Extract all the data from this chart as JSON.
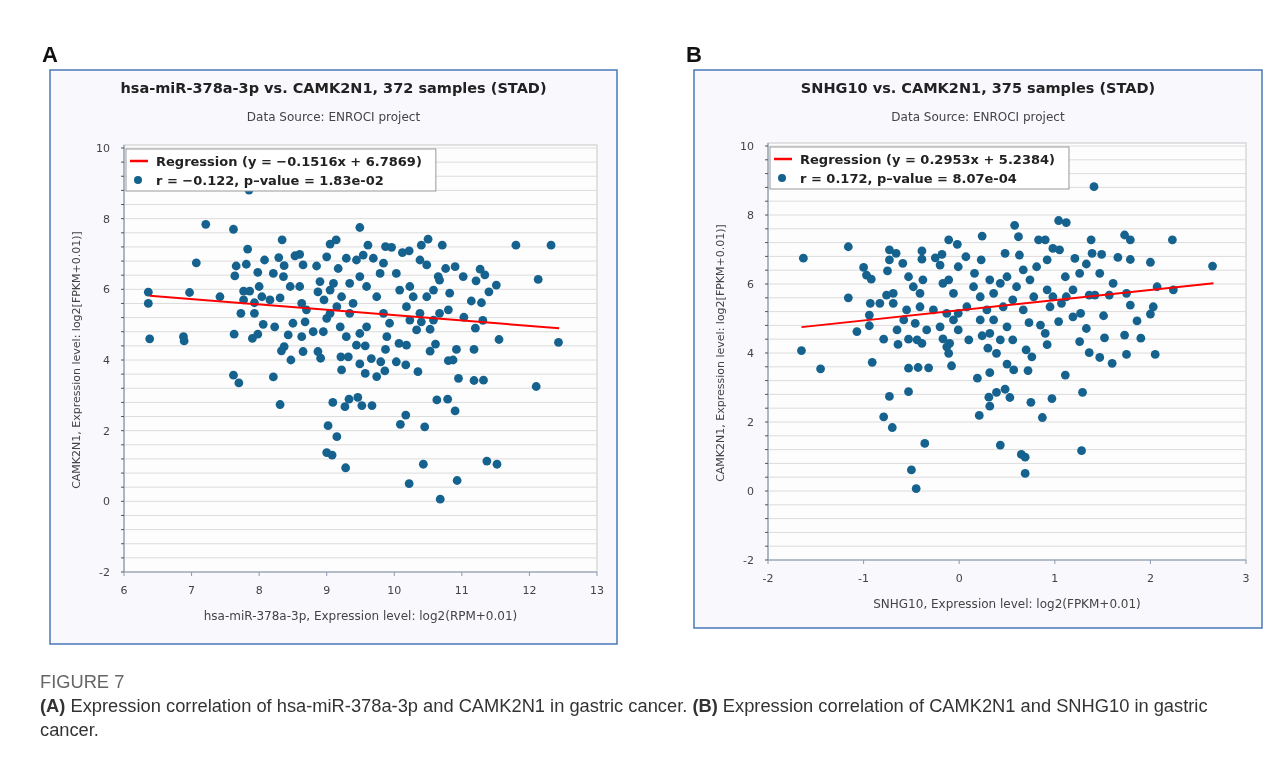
{
  "chart_data": [
    {
      "type": "scatter",
      "title": "hsa-miR-378a-3p vs. CAMK2N1, 372 samples (STAD)",
      "subtitle": "Data Source: ENROCI project",
      "xlabel": "hsa-miR-378a-3p, Expression level: log2(RPM+0.01)",
      "ylabel": "CAMK2N1, Expression level: log2[FPKM+0.01)]",
      "annotations": [
        "A"
      ],
      "xlim": [
        6,
        13
      ],
      "xticks": [
        6,
        7,
        8,
        9,
        10,
        11,
        12,
        13
      ],
      "ylim": [
        -2,
        10
      ],
      "yticks": [
        -2,
        {
          "value": -1.6,
          "label": null
        },
        {
          "value": -1.2,
          "label": null
        },
        {
          "value": -0.8,
          "label": null
        },
        {
          "value": -0.4,
          "label": null
        },
        0,
        {
          "value": 0.4,
          "label": null
        },
        {
          "value": 0.8,
          "label": null
        },
        {
          "value": 1.2,
          "label": null
        },
        {
          "value": 1.6,
          "label": null
        },
        2,
        {
          "value": 2.4,
          "label": null
        },
        {
          "value": 2.8,
          "label": null
        },
        {
          "value": 3.2,
          "label": null
        },
        {
          "value": 3.6,
          "label": null
        },
        4,
        {
          "value": 4.4,
          "label": null
        },
        {
          "value": 4.8,
          "label": null
        },
        {
          "value": 5.2,
          "label": null
        },
        {
          "value": 5.6,
          "label": null
        },
        6,
        {
          "value": 6.4,
          "label": null
        },
        {
          "value": 6.8,
          "label": null
        },
        {
          "value": 7.2,
          "label": null
        },
        {
          "value": 7.6,
          "label": null
        },
        8,
        {
          "value": 8.4,
          "label": null
        },
        {
          "value": 8.8,
          "label": null
        },
        {
          "value": 9.2,
          "label": null
        },
        {
          "value": 9.6,
          "label": null
        },
        10
      ],
      "grid": "y",
      "legend": "top left",
      "series": [
        {
          "type": "line",
          "name": "Regression (y = −0.1516x + 6.7869)",
          "color": "#ff0000",
          "x": [
            6.38,
            12.44
          ],
          "values": [
            5.82,
            4.9
          ]
        },
        {
          "marker": "circle",
          "name": "r = −0.122, p–value = 1.83e-02",
          "color": "#15628f",
          "x": [
            7.85,
            7.21,
            7.62,
            9.49,
            7.07,
            7.83,
            8.34,
            6.36,
            6.36,
            6.38,
            6.97,
            6.88,
            6.89,
            7.42,
            7.66,
            7.64,
            7.81,
            7.63,
            7.62,
            7.7,
            7.9,
            7.98,
            8.21,
            8.31,
            8.08,
            8.29,
            8.53,
            8.6,
            8.37,
            8.85,
            9.05,
            9.14,
            9.0,
            9.61,
            9.87,
            9.96,
            10.12,
            10.22,
            10.4,
            10.5,
            10.71,
            11.8,
            12.32,
            12.13,
            11.51,
            11.4,
            11.55,
            12.43,
            12.1,
            11.37,
            11.52,
            10.93,
            10.68,
            10.22,
            10.43,
            10.09,
            10.17,
            10.45,
            10.63,
            10.79,
            10.9,
            10.95,
            11.18,
            11.32,
            11.18,
            11.2,
            11.31,
            11.29,
            11.14,
            11.27,
            11.34,
            11.21,
            11.02,
            10.9,
            10.76,
            10.65,
            10.8,
            11.03,
            10.92,
            10.87,
            10.8,
            10.61,
            10.53,
            10.53,
            10.35,
            10.17,
            10.03,
            10.18,
            10.07,
            9.87,
            9.86,
            9.74,
            9.57,
            9.49,
            9.66,
            9.8,
            9.44,
            9.57,
            9.21,
            9.32,
            9.22,
            9.09,
            9.33,
            9.46,
            9.27,
            9.52,
            9.67,
            9.02,
            9.15,
            9.0,
            9.08,
            9.28,
            8.91,
            8.87,
            8.65,
            8.47,
            8.33,
            8.37,
            8.23,
            8.06,
            7.93,
            7.73,
            7.77,
            7.93,
            7.77,
            7.86,
            8.0,
            7.98,
            8.04,
            8.16,
            8.21,
            8.36,
            8.31,
            8.46,
            8.43,
            8.5,
            8.68,
            8.63,
            8.8,
            8.95,
            9.0,
            8.7,
            8.63,
            8.6,
            8.87,
            8.9,
            8.65,
            9.17,
            9.29,
            9.44,
            9.54,
            9.69,
            9.84,
            9.1,
            9.22,
            9.15,
            9.2,
            9.34,
            9.39,
            9.49,
            9.59,
            9.49,
            9.59,
            9.74,
            9.84,
            9.93,
            9.89,
            10.03,
            10.08,
            10.18,
            10.28,
            10.23,
            10.38,
            10.4,
            10.33,
            10.48,
            10.58,
            10.58,
            10.67,
            10.23,
            10.38,
            10.48,
            10.67,
            10.82,
            9.79,
            9.34,
            8.96,
            9.05,
            9.29,
            9.05
          ],
          "values": [
            8.81,
            7.84,
            7.7,
            7.75,
            6.75,
            7.14,
            7.4,
            5.92,
            5.6,
            4.6,
            5.91,
            4.66,
            4.54,
            5.79,
            6.66,
            6.38,
            6.71,
            4.73,
            3.57,
            3.35,
            4.61,
            4.73,
            3.52,
            2.74,
            6.83,
            6.9,
            6.95,
            6.99,
            6.67,
            6.66,
            7.28,
            7.4,
            6.92,
            7.25,
            7.21,
            7.19,
            7.04,
            7.09,
            7.25,
            7.42,
            7.25,
            7.25,
            7.25,
            6.28,
            6.12,
            5.93,
            4.58,
            4.5,
            3.25,
            1.14,
            1.05,
            0.59,
            0.06,
            0.5,
            1.05,
            2.18,
            2.44,
            2.11,
            2.87,
            2.89,
            2.56,
            3.48,
            3.42,
            3.43,
            4.3,
            4.9,
            5.12,
            5.62,
            5.67,
            6.57,
            6.41,
            6.24,
            6.36,
            6.64,
            6.59,
            6.36,
            5.42,
            5.21,
            4.3,
            4.0,
            3.98,
            4.45,
            4.25,
            4.87,
            3.67,
            3.86,
            3.95,
            4.42,
            4.47,
            4.3,
            3.69,
            3.53,
            3.62,
            3.89,
            4.04,
            3.95,
            4.42,
            4.4,
            4.09,
            4.09,
            3.72,
            2.8,
            2.89,
            2.94,
            2.68,
            2.71,
            2.71,
            2.14,
            1.83,
            1.38,
            1.31,
            0.95,
            4.05,
            4.24,
            4.24,
            4.0,
            4.26,
            4.38,
            4.94,
            5.01,
            5.32,
            5.32,
            5.7,
            5.62,
            5.95,
            5.95,
            6.08,
            6.48,
            5.79,
            5.7,
            6.45,
            6.36,
            5.76,
            6.08,
            4.71,
            5.04,
            5.08,
            4.66,
            4.8,
            4.8,
            5.18,
            5.42,
            5.6,
            6.08,
            5.93,
            6.22,
            6.69,
            6.59,
            6.88,
            6.83,
            6.97,
            6.88,
            6.74,
            6.17,
            5.79,
            5.51,
            4.94,
            5.32,
            5.6,
            6.36,
            6.08,
            4.75,
            4.94,
            5.79,
            5.32,
            5.04,
            4.66,
            6.45,
            5.98,
            5.51,
            5.79,
            5.13,
            5.32,
            5.08,
            4.85,
            5.79,
            5.98,
            5.13,
            5.32,
            6.08,
            6.83,
            6.69,
            6.26,
            5.89,
            6.45,
            6.17,
            5.7,
            5.32,
            4.66,
            5.98
          ]
        }
      ]
    },
    {
      "type": "scatter",
      "title": "SNHG10 vs. CAMK2N1, 375 samples (STAD)",
      "subtitle": "Data Source: ENROCI project",
      "xlabel": "SNHG10, Expression level: log2(FPKM+0.01)",
      "ylabel": "CAMK2N1, Expression level: log2[FPKM+0.01)]",
      "annotations": [
        "B",
        "FIGURE 7",
        "(A) Expression correlation of hsa-miR-378a-3p and CAMK2N1 in gastric cancer. (B) Expression correlation of CAMK2N1 and SNHG10 in gastric cancer."
      ],
      "xlim": [
        -2,
        3
      ],
      "xticks": [
        -2,
        -1,
        0,
        1,
        2,
        3
      ],
      "ylim": [
        -2,
        10
      ],
      "yticks": [
        -2,
        {
          "value": -1.6,
          "label": null
        },
        {
          "value": -1.2,
          "label": null
        },
        {
          "value": -0.8,
          "label": null
        },
        {
          "value": -0.4,
          "label": null
        },
        0,
        {
          "value": 0.4,
          "label": null
        },
        {
          "value": 0.8,
          "label": null
        },
        {
          "value": 1.2,
          "label": null
        },
        {
          "value": 1.6,
          "label": null
        },
        2,
        {
          "value": 2.4,
          "label": null
        },
        {
          "value": 2.8,
          "label": null
        },
        {
          "value": 3.2,
          "label": null
        },
        {
          "value": 3.6,
          "label": null
        },
        4,
        {
          "value": 4.4,
          "label": null
        },
        {
          "value": 4.8,
          "label": null
        },
        {
          "value": 5.2,
          "label": null
        },
        {
          "value": 5.6,
          "label": null
        },
        6,
        {
          "value": 6.4,
          "label": null
        },
        {
          "value": 6.8,
          "label": null
        },
        {
          "value": 7.2,
          "label": null
        },
        {
          "value": 7.6,
          "label": null
        },
        8,
        {
          "value": 8.4,
          "label": null
        },
        {
          "value": 8.8,
          "label": null
        },
        {
          "value": 9.2,
          "label": null
        },
        {
          "value": 9.6,
          "label": null
        },
        10
      ],
      "grid": "y",
      "legend": "top left",
      "series": [
        {
          "type": "line",
          "name": "Regression (y = 0.2953x + 5.2384)",
          "color": "#ff0000",
          "x": [
            -1.65,
            2.66
          ],
          "values": [
            4.75,
            6.02
          ]
        },
        {
          "marker": "circle",
          "name": "r = 0.172, p–value = 8.07e-04",
          "color": "#15628f",
          "x": [
            1.41,
            1.04,
            1.12,
            0.58,
            0.24,
            0.62,
            -0.11,
            -0.02,
            -1.16,
            -1.63,
            2.23,
            1.73,
            1.79,
            1.38,
            2.65,
            2.0,
            1.79,
            2.24,
            2.07,
            2.03,
            2.0,
            1.86,
            1.9,
            2.05,
            1.75,
            1.73,
            1.6,
            1.52,
            1.47,
            1.36,
            1.26,
            1.33,
            1.51,
            1.79,
            1.75,
            1.57,
            1.42,
            1.36,
            1.61,
            1.47,
            1.66,
            1.49,
            1.39,
            1.33,
            1.21,
            1.26,
            1.11,
            1.19,
            1.27,
            1.19,
            1.11,
            0.97,
            1.29,
            1.28,
            0.87,
            0.75,
            0.65,
            0.69,
            0.69,
            0.43,
            0.53,
            0.48,
            0.39,
            0.32,
            0.31,
            0.21,
            0.19,
            0.32,
            0.5,
            0.57,
            0.72,
            0.76,
            0.7,
            0.92,
            0.9,
            0.85,
            0.73,
            0.56,
            0.43,
            0.39,
            0.3,
            0.24,
            0.1,
            -0.08,
            -0.11,
            -0.1,
            -0.17,
            -0.32,
            -0.43,
            -0.53,
            -0.53,
            -0.36,
            -0.5,
            -0.45,
            -0.7,
            -0.79,
            -0.73,
            -0.91,
            -1.45,
            -1.65,
            -1.07,
            -0.94,
            -0.79,
            -0.64,
            -0.53,
            -0.44,
            -0.39,
            -0.65,
            -0.58,
            -0.46,
            -0.34,
            -0.2,
            -0.13,
            -0.01,
            -0.01,
            -0.13,
            -0.27,
            -0.41,
            -0.55,
            -0.69,
            -0.83,
            -0.93,
            -0.94,
            -1.16,
            -1.0,
            -0.97,
            -0.92,
            -0.75,
            -0.73,
            -0.73,
            -0.66,
            -0.59,
            -0.76,
            -0.69,
            -0.53,
            -0.48,
            -0.41,
            -0.38,
            -0.39,
            -0.39,
            -0.25,
            -0.18,
            -0.2,
            -0.17,
            -0.11,
            -0.06,
            -0.01,
            0.07,
            0.16,
            0.23,
            0.32,
            0.15,
            0.22,
            0.36,
            0.29,
            0.22,
            0.36,
            0.46,
            0.43,
            0.5,
            0.48,
            0.63,
            0.67,
            0.6,
            0.56,
            0.67,
            0.78,
            0.74,
            0.81,
            0.92,
            0.98,
            1.05,
            0.9,
            0.83,
            0.92,
            0.98,
            0.95,
            1.04,
            1.07,
            1.12,
            0.5,
            0.32,
            -0.06,
            0.08
          ],
          "values": [
            8.82,
            7.84,
            7.78,
            7.7,
            7.39,
            7.37,
            7.28,
            7.15,
            7.08,
            6.75,
            7.28,
            7.42,
            7.28,
            7.28,
            6.52,
            6.63,
            6.71,
            5.83,
            5.92,
            5.34,
            5.13,
            4.93,
            4.43,
            3.96,
            3.96,
            4.52,
            3.7,
            4.44,
            3.87,
            4.01,
            4.33,
            4.71,
            5.08,
            5.39,
            5.73,
            5.68,
            5.68,
            5.68,
            6.02,
            6.31,
            6.77,
            6.86,
            6.89,
            6.58,
            6.74,
            6.31,
            6.21,
            5.83,
            5.15,
            5.05,
            3.36,
            2.68,
            2.86,
            1.17,
            2.13,
            2.57,
            1.06,
            0.98,
            0.51,
            1.33,
            2.71,
            2.95,
            2.86,
            2.46,
            2.72,
            2.19,
            3.27,
            3.43,
            3.68,
            3.51,
            3.49,
            3.89,
            4.09,
            4.24,
            4.57,
            4.81,
            4.88,
            4.38,
            4.38,
            3.99,
            4.14,
            4.5,
            4.38,
            3.63,
            3.99,
            4.28,
            4.41,
            3.57,
            3.58,
            3.56,
            2.88,
            1.38,
            0.61,
            0.07,
            1.84,
            2.15,
            2.74,
            3.73,
            3.54,
            4.07,
            4.62,
            4.79,
            4.4,
            4.25,
            4.4,
            4.38,
            4.28,
            4.67,
            4.96,
            4.86,
            4.67,
            4.76,
            4.18,
            4.67,
            5.15,
            5.15,
            5.25,
            5.34,
            5.25,
            5.44,
            5.44,
            5.44,
            5.1,
            5.6,
            6.48,
            6.26,
            6.14,
            6.38,
            6.7,
            6.99,
            6.89,
            6.6,
            5.68,
            5.73,
            6.21,
            5.92,
            5.73,
            6.12,
            6.96,
            6.72,
            6.76,
            6.86,
            6.55,
            6.02,
            6.12,
            5.73,
            6.5,
            6.79,
            6.31,
            6.7,
            6.12,
            5.92,
            5.63,
            5.73,
            5.25,
            4.96,
            4.96,
            5.34,
            6.02,
            6.21,
            6.89,
            6.84,
            6.41,
            5.92,
            5.54,
            5.25,
            5.63,
            6.12,
            6.5,
            6.7,
            7.03,
            6.99,
            7.28,
            7.28,
            5.83,
            5.63,
            5.34,
            4.91,
            5.44,
            5.63,
            4.76,
            4.57,
            4.96,
            5.34
          ]
        }
      ]
    }
  ]
}
